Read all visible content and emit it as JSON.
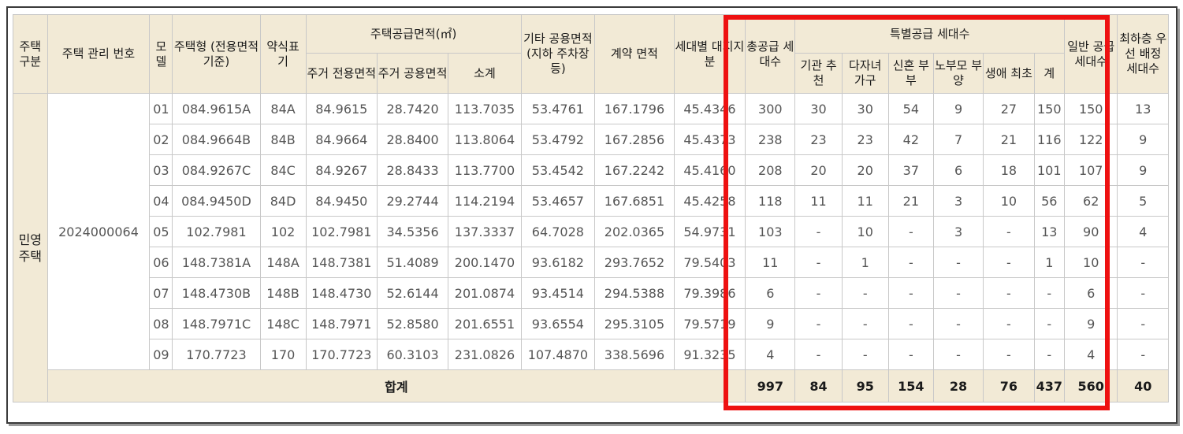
{
  "headers": {
    "housing_type": "주택 구분",
    "mgmt_no": "주택 관리 번호",
    "model": "모 델",
    "house_type": "주택형 (전용면적기준)",
    "abbr": "약식표 기",
    "supply_area_group": "주택공급면적(㎡)",
    "residential_exclusive": "주거 전용면적",
    "residential_common": "주거 공용면적",
    "subtotal": "소계",
    "other_common": "기타 공용면적 (지하 주차장등)",
    "contract_area": "계약 면적",
    "land_share": "세대별 대지지분",
    "total_supply": "총공급 세대수",
    "special_group": "특별공급 세대수",
    "institution": "기관 추천",
    "multi_child": "다자녀 가구",
    "newlywed": "신혼 부부",
    "elderly_parent": "노부모 부양",
    "first_time": "생애 최초",
    "special_total": "계",
    "general": "일반 공급 세대수",
    "lowest_floor": "최하층 우선 배정 세대수"
  },
  "group": {
    "type": "민영 주택",
    "mgmt_no": "2024000064"
  },
  "rows": [
    [
      "01",
      "084.9615A",
      "84A",
      "84.9615",
      "28.7420",
      "113.7035",
      "53.4761",
      "167.1796",
      "45.4346",
      "300",
      "30",
      "30",
      "54",
      "9",
      "27",
      "150",
      "150",
      "13"
    ],
    [
      "02",
      "084.9664B",
      "84B",
      "84.9664",
      "28.8400",
      "113.8064",
      "53.4792",
      "167.2856",
      "45.4373",
      "238",
      "23",
      "23",
      "42",
      "7",
      "21",
      "116",
      "122",
      "9"
    ],
    [
      "03",
      "084.9267C",
      "84C",
      "84.9267",
      "28.8433",
      "113.7700",
      "53.4542",
      "167.2242",
      "45.4160",
      "208",
      "20",
      "20",
      "37",
      "6",
      "18",
      "101",
      "107",
      "9"
    ],
    [
      "04",
      "084.9450D",
      "84D",
      "84.9450",
      "29.2744",
      "114.2194",
      "53.4657",
      "167.6851",
      "45.4258",
      "118",
      "11",
      "11",
      "21",
      "3",
      "10",
      "56",
      "62",
      "5"
    ],
    [
      "05",
      "102.7981",
      "102",
      "102.7981",
      "34.5356",
      "137.3337",
      "64.7028",
      "202.0365",
      "54.9731",
      "103",
      "-",
      "10",
      "-",
      "3",
      "-",
      "13",
      "90",
      "4"
    ],
    [
      "06",
      "148.7381A",
      "148A",
      "148.7381",
      "51.4089",
      "200.1470",
      "93.6182",
      "293.7652",
      "79.5403",
      "11",
      "-",
      "1",
      "-",
      "-",
      "-",
      "1",
      "10",
      "-"
    ],
    [
      "07",
      "148.4730B",
      "148B",
      "148.4730",
      "52.6144",
      "201.0874",
      "93.4514",
      "294.5388",
      "79.3986",
      "6",
      "-",
      "-",
      "-",
      "-",
      "-",
      "-",
      "6",
      "-"
    ],
    [
      "08",
      "148.7971C",
      "148C",
      "148.7971",
      "52.8580",
      "201.6551",
      "93.6554",
      "295.3105",
      "79.5719",
      "9",
      "-",
      "-",
      "-",
      "-",
      "-",
      "-",
      "9",
      "-"
    ],
    [
      "09",
      "170.7723",
      "170",
      "170.7723",
      "60.3103",
      "231.0826",
      "107.4870",
      "338.5696",
      "91.3235",
      "4",
      "-",
      "-",
      "-",
      "-",
      "-",
      "-",
      "4",
      "-"
    ]
  ],
  "total": {
    "label": "합계",
    "values": [
      "997",
      "84",
      "95",
      "154",
      "28",
      "76",
      "437",
      "560",
      "40"
    ]
  },
  "highlight_color": "#ee1111",
  "header_bg": "#f2ead6"
}
